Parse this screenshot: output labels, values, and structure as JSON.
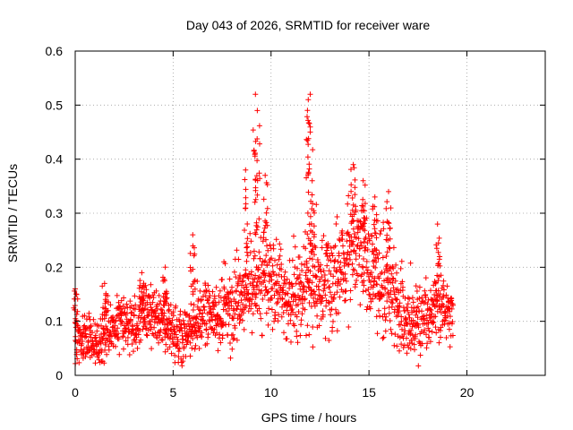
{
  "chart_data": {
    "type": "scatter",
    "title": "Day 043 of 2026, SRMTID for receiver ware",
    "xlabel": "GPS time / hours",
    "ylabel": "SRMTID / TECUs",
    "xlim": [
      0,
      24
    ],
    "ylim": [
      0,
      0.6
    ],
    "xticks": [
      0,
      5,
      10,
      15,
      20
    ],
    "yticks": [
      0,
      0.1,
      0.2,
      0.3,
      0.4,
      0.5,
      0.6
    ],
    "xtick_labels": [
      "0",
      "5",
      "10",
      "15",
      "20"
    ],
    "ytick_labels": [
      "0",
      "0.1",
      "0.2",
      "0.3",
      "0.4",
      "0.5",
      "0.6"
    ],
    "grid": true,
    "marker": "+",
    "color": "#ff0000",
    "series": [
      {
        "name": "SRMTID",
        "profile": [
          [
            0.0,
            0.07
          ],
          [
            0.5,
            0.07
          ],
          [
            1.0,
            0.065
          ],
          [
            1.5,
            0.07
          ],
          [
            2.0,
            0.09
          ],
          [
            2.5,
            0.1
          ],
          [
            3.0,
            0.09
          ],
          [
            3.5,
            0.12
          ],
          [
            4.0,
            0.12
          ],
          [
            4.5,
            0.1
          ],
          [
            5.0,
            0.08
          ],
          [
            5.5,
            0.075
          ],
          [
            6.0,
            0.09
          ],
          [
            6.5,
            0.11
          ],
          [
            7.0,
            0.11
          ],
          [
            7.5,
            0.12
          ],
          [
            8.0,
            0.13
          ],
          [
            8.5,
            0.14
          ],
          [
            9.0,
            0.17
          ],
          [
            9.5,
            0.17
          ],
          [
            10.0,
            0.18
          ],
          [
            10.5,
            0.16
          ],
          [
            11.0,
            0.14
          ],
          [
            11.5,
            0.15
          ],
          [
            12.0,
            0.17
          ],
          [
            12.5,
            0.18
          ],
          [
            13.0,
            0.17
          ],
          [
            13.5,
            0.2
          ],
          [
            14.0,
            0.22
          ],
          [
            14.5,
            0.24
          ],
          [
            15.0,
            0.2
          ],
          [
            15.5,
            0.16
          ],
          [
            16.0,
            0.17
          ],
          [
            16.5,
            0.13
          ],
          [
            17.0,
            0.1
          ],
          [
            17.5,
            0.11
          ],
          [
            18.0,
            0.11
          ],
          [
            18.5,
            0.13
          ],
          [
            19.0,
            0.12
          ],
          [
            19.3,
            0.11
          ]
        ],
        "spread": [
          [
            0.0,
            0.04
          ],
          [
            5.0,
            0.04
          ],
          [
            8.5,
            0.06
          ],
          [
            10.0,
            0.07
          ],
          [
            13.0,
            0.08
          ],
          [
            15.0,
            0.09
          ],
          [
            17.0,
            0.06
          ],
          [
            19.3,
            0.05
          ]
        ],
        "spikes": [
          [
            0.0,
            0.16
          ],
          [
            1.5,
            0.17
          ],
          [
            3.4,
            0.19
          ],
          [
            4.6,
            0.2
          ],
          [
            6.0,
            0.26
          ],
          [
            8.7,
            0.38
          ],
          [
            9.2,
            0.52
          ],
          [
            9.3,
            0.49
          ],
          [
            9.7,
            0.37
          ],
          [
            11.9,
            0.51
          ],
          [
            12.0,
            0.52
          ],
          [
            12.1,
            0.36
          ],
          [
            14.2,
            0.39
          ],
          [
            14.7,
            0.36
          ],
          [
            15.3,
            0.33
          ],
          [
            16.0,
            0.34
          ],
          [
            18.5,
            0.28
          ]
        ]
      }
    ]
  }
}
